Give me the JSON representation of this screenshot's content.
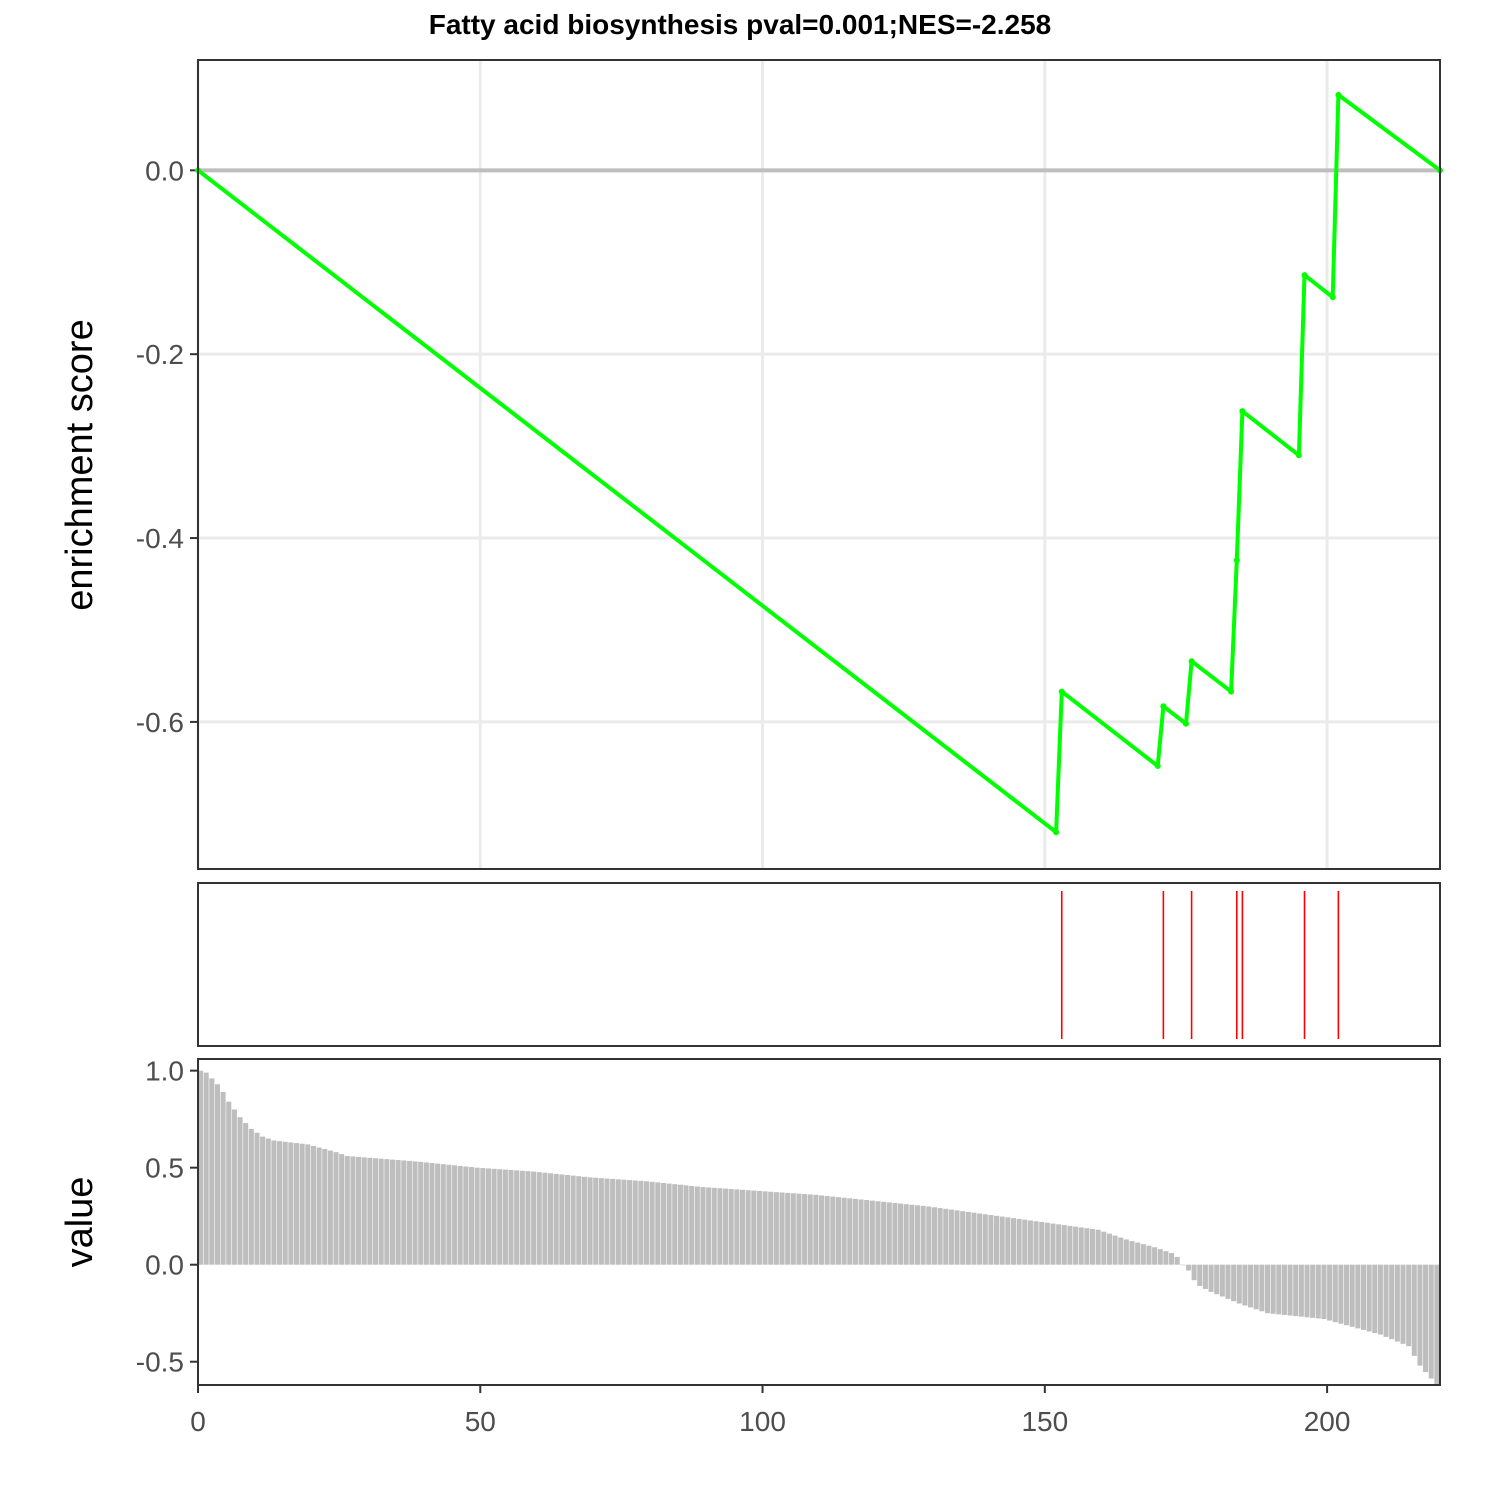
{
  "chart_data": {
    "type": "line",
    "title": "Fatty acid biosynthesis pval=0.001;NES=-2.258",
    "xlim": [
      0,
      220
    ],
    "x_ticks": [
      0,
      50,
      100,
      150,
      200
    ],
    "x_tick_labels": [
      "0",
      "50",
      "100",
      "150",
      "200"
    ],
    "grid": true,
    "panels": [
      {
        "name": "running-enrichment",
        "type": "line",
        "ylabel": "enrichment score",
        "ylim": [
          -0.76,
          0.12
        ],
        "y_ticks": [
          0.0,
          -0.2,
          -0.4,
          -0.6
        ],
        "y_tick_labels": [
          "0.0",
          "-0.2",
          "-0.4",
          "-0.6"
        ],
        "line_color": "#00ff00",
        "zero_line_color": "#bebebe",
        "series": [
          {
            "x": [
              0,
              152,
              153,
              170,
              171,
              175,
              176,
              183,
              184,
              185,
              195,
              196,
              201,
              202,
              220
            ],
            "y": [
              0.0,
              -0.72,
              -0.567,
              -0.648,
              -0.583,
              -0.602,
              -0.534,
              -0.567,
              -0.424,
              -0.262,
              -0.31,
              -0.114,
              -0.138,
              0.082,
              0.0
            ]
          }
        ]
      },
      {
        "name": "hit-positions",
        "type": "rug",
        "line_color": "#ff0000",
        "x": [
          153,
          171,
          176,
          184,
          185,
          196,
          202
        ]
      },
      {
        "name": "ranked-values",
        "type": "bar",
        "ylabel": "value",
        "ylim": [
          -0.62,
          1.06
        ],
        "y_ticks": [
          1.0,
          0.5,
          0.0,
          -0.5
        ],
        "y_tick_labels": [
          "1.0",
          "0.5",
          "0.0",
          "-0.5"
        ],
        "bar_color": "#bebebe",
        "ranks": [
          1,
          220
        ],
        "values_at_rank": [
          [
            1,
            1.0
          ],
          [
            2,
            0.99
          ],
          [
            3,
            0.96
          ],
          [
            4,
            0.93
          ],
          [
            5,
            0.89
          ],
          [
            6,
            0.84
          ],
          [
            7,
            0.8
          ],
          [
            8,
            0.76
          ],
          [
            9,
            0.73
          ],
          [
            10,
            0.7
          ],
          [
            11,
            0.68
          ],
          [
            12,
            0.66
          ],
          [
            14,
            0.64
          ],
          [
            20,
            0.62
          ],
          [
            25,
            0.58
          ],
          [
            27,
            0.56
          ],
          [
            40,
            0.53
          ],
          [
            50,
            0.5
          ],
          [
            60,
            0.48
          ],
          [
            70,
            0.45
          ],
          [
            80,
            0.43
          ],
          [
            90,
            0.4
          ],
          [
            100,
            0.38
          ],
          [
            110,
            0.36
          ],
          [
            120,
            0.33
          ],
          [
            130,
            0.3
          ],
          [
            140,
            0.26
          ],
          [
            150,
            0.22
          ],
          [
            160,
            0.18
          ],
          [
            165,
            0.13
          ],
          [
            170,
            0.09
          ],
          [
            173,
            0.06
          ],
          [
            174,
            0.04
          ],
          [
            175,
            0.0
          ],
          [
            176,
            -0.03
          ],
          [
            177,
            -0.08
          ],
          [
            178,
            -0.11
          ],
          [
            180,
            -0.14
          ],
          [
            185,
            -0.2
          ],
          [
            190,
            -0.25
          ],
          [
            200,
            -0.28
          ],
          [
            205,
            -0.32
          ],
          [
            210,
            -0.36
          ],
          [
            215,
            -0.42
          ],
          [
            217,
            -0.52
          ],
          [
            220,
            -0.62
          ]
        ]
      }
    ]
  }
}
